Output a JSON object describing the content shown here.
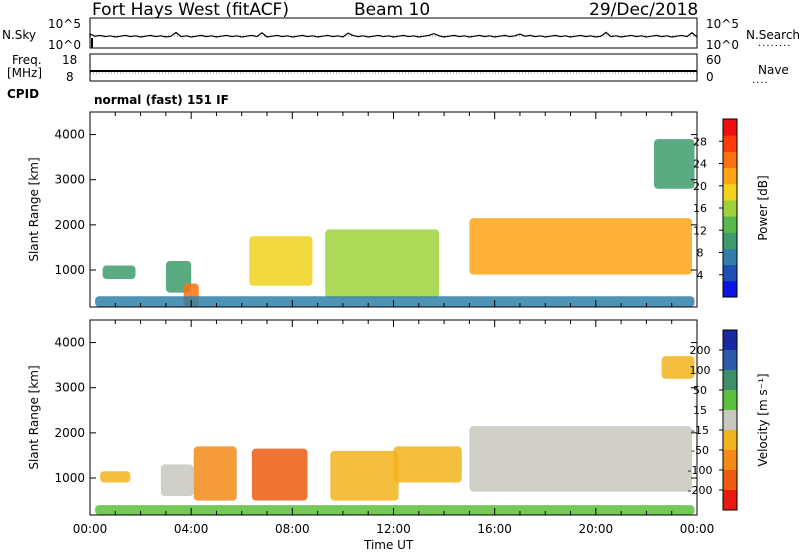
{
  "header": {
    "station": "Fort Hays West (fitACF)",
    "beam": "Beam 10",
    "date": "29/Dec/2018"
  },
  "top_panel": {
    "left_label": "N.Sky",
    "left_ticks": [
      "10^5",
      "10^0"
    ],
    "right_label": "N.Search",
    "right_ticks": [
      "10^5",
      "10^0"
    ],
    "right_dots": "........"
  },
  "freq_panel": {
    "left_label_1": "Freq.",
    "left_label_2": "[MHz]",
    "left_ticks": [
      "18",
      "8"
    ],
    "right_label": "Nave",
    "right_ticks": [
      "60",
      "0"
    ],
    "right_dots": "....",
    "cpid_label": "CPID"
  },
  "mode_label": "normal (fast) 151 IF",
  "x_axis": {
    "label": "Time UT",
    "ticks": [
      "00:00",
      "04:00",
      "08:00",
      "12:00",
      "16:00",
      "20:00",
      "00:00"
    ]
  },
  "chart_data": [
    {
      "type": "heatmap",
      "quantity": "power",
      "xlabel": "Time UT",
      "ylabel": "Slant Range [km]",
      "y_ticks": [
        "1000",
        "2000",
        "3000",
        "4000"
      ],
      "xlim_hours": [
        0,
        24
      ],
      "ylim_km": [
        180,
        4500
      ],
      "colorbar": {
        "label": "Power [dB]",
        "range": [
          0,
          32
        ],
        "tick_labels": [
          "4",
          "8",
          "12",
          "16",
          "20",
          "24",
          "28"
        ],
        "colors": [
          "#0a14e6",
          "#1e4fb4",
          "#2f7fa8",
          "#3e9c6c",
          "#58b84a",
          "#9dd23a",
          "#f2d21c",
          "#ffa514",
          "#ff7010",
          "#ff3a0c",
          "#ee1010"
        ]
      },
      "features": [
        {
          "t0": 0.5,
          "t1": 1.8,
          "r0": 800,
          "r1": 1100,
          "level": 8
        },
        {
          "t0": 3.0,
          "t1": 4.0,
          "r0": 500,
          "r1": 1200,
          "level": 10
        },
        {
          "t0": 3.7,
          "t1": 4.3,
          "r0": 180,
          "r1": 700,
          "level": 26
        },
        {
          "t0": 6.3,
          "t1": 8.8,
          "r0": 650,
          "r1": 1750,
          "level": 20
        },
        {
          "t0": 9.3,
          "t1": 13.8,
          "r0": 380,
          "r1": 1900,
          "level": 17
        },
        {
          "t0": 15.0,
          "t1": 23.8,
          "r0": 900,
          "r1": 2150,
          "level": 21
        },
        {
          "t0": 22.3,
          "t1": 23.9,
          "r0": 2800,
          "r1": 3900,
          "level": 9
        },
        {
          "t0": 0.2,
          "t1": 23.9,
          "r0": 180,
          "r1": 420,
          "level": 6
        }
      ]
    },
    {
      "type": "heatmap",
      "quantity": "velocity",
      "xlabel": "Time UT",
      "ylabel": "Slant Range [km]",
      "y_ticks": [
        "1000",
        "2000",
        "3000",
        "4000"
      ],
      "xlim_hours": [
        0,
        24
      ],
      "ylim_km": [
        180,
        4500
      ],
      "colorbar": {
        "label": "Velocity [m s⁻¹]",
        "tick_labels": [
          "200",
          "100",
          "50",
          "15",
          "-15",
          "-50",
          "-100",
          "-200"
        ],
        "colors": [
          "#1a2a9e",
          "#2a5aa8",
          "#3d8f6a",
          "#5cc03c",
          "#c8c8c0",
          "#f2b41c",
          "#f58a16",
          "#ef5a10",
          "#e81a10"
        ]
      },
      "features": [
        {
          "t0": 0.4,
          "t1": 1.6,
          "r0": 900,
          "r1": 1150,
          "v": -20
        },
        {
          "t0": 2.8,
          "t1": 4.1,
          "r0": 600,
          "r1": 1300,
          "v": 0
        },
        {
          "t0": 4.1,
          "t1": 5.8,
          "r0": 500,
          "r1": 1700,
          "v": -90
        },
        {
          "t0": 6.4,
          "t1": 8.6,
          "r0": 500,
          "r1": 1650,
          "v": -110
        },
        {
          "t0": 9.5,
          "t1": 12.2,
          "r0": 500,
          "r1": 1600,
          "v": -50
        },
        {
          "t0": 12.0,
          "t1": 14.7,
          "r0": 900,
          "r1": 1700,
          "v": -25
        },
        {
          "t0": 15.0,
          "t1": 23.8,
          "r0": 700,
          "r1": 2150,
          "v": 0
        },
        {
          "t0": 22.6,
          "t1": 23.9,
          "r0": 3200,
          "r1": 3700,
          "v": -20
        },
        {
          "t0": 0.2,
          "t1": 23.9,
          "r0": 180,
          "r1": 400,
          "v": 30
        }
      ]
    }
  ]
}
